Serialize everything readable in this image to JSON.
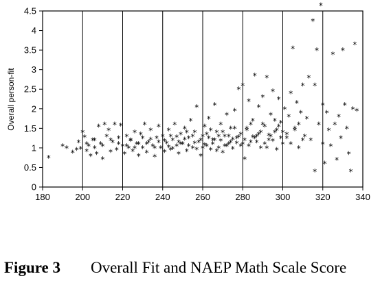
{
  "chart_data": {
    "type": "scatter",
    "marker": "*",
    "ylabel": "Overall person-fit",
    "xlim": [
      180,
      340
    ],
    "ylim": [
      0,
      4.5
    ],
    "xticks": [
      "180",
      "200",
      "220",
      "240",
      "260",
      "280",
      "300",
      "320",
      "340"
    ],
    "yticks": [
      "0",
      "0.5",
      "1",
      "1.5",
      "2",
      "2.5",
      "3",
      "3.5",
      "4",
      "4.5"
    ],
    "grid": "vertical",
    "series": [
      {
        "points": [
          {
            "x": 183,
            "y": 0.75
          },
          {
            "x": 190,
            "y": 1.05
          },
          {
            "x": 192,
            "y": 1.0
          },
          {
            "x": 195,
            "y": 0.88
          },
          {
            "x": 197,
            "y": 0.95
          },
          {
            "x": 198,
            "y": 1.15
          },
          {
            "x": 200,
            "y": 1.4
          },
          {
            "x": 201,
            "y": 1.28
          },
          {
            "x": 202,
            "y": 0.92
          },
          {
            "x": 203,
            "y": 1.05
          },
          {
            "x": 204,
            "y": 0.8
          },
          {
            "x": 205,
            "y": 1.2
          },
          {
            "x": 206,
            "y": 1.0
          },
          {
            "x": 207,
            "y": 0.85
          },
          {
            "x": 208,
            "y": 1.55
          },
          {
            "x": 209,
            "y": 1.1
          },
          {
            "x": 210,
            "y": 0.72
          },
          {
            "x": 211,
            "y": 1.6
          },
          {
            "x": 212,
            "y": 1.3
          },
          {
            "x": 213,
            "y": 1.45
          },
          {
            "x": 214,
            "y": 0.9
          },
          {
            "x": 215,
            "y": 1.15
          },
          {
            "x": 216,
            "y": 1.6
          },
          {
            "x": 217,
            "y": 0.95
          },
          {
            "x": 218,
            "y": 1.25
          },
          {
            "x": 219,
            "y": 1.58
          },
          {
            "x": 220,
            "y": 1.05
          },
          {
            "x": 221,
            "y": 0.85
          },
          {
            "x": 222,
            "y": 1.3
          },
          {
            "x": 223,
            "y": 1.0
          },
          {
            "x": 224,
            "y": 1.2
          },
          {
            "x": 225,
            "y": 0.92
          },
          {
            "x": 226,
            "y": 1.4
          },
          {
            "x": 227,
            "y": 1.1
          },
          {
            "x": 228,
            "y": 0.8
          },
          {
            "x": 229,
            "y": 1.35
          },
          {
            "x": 230,
            "y": 1.0
          },
          {
            "x": 231,
            "y": 1.6
          },
          {
            "x": 232,
            "y": 0.88
          },
          {
            "x": 233,
            "y": 1.15
          },
          {
            "x": 234,
            "y": 1.45
          },
          {
            "x": 235,
            "y": 1.05
          },
          {
            "x": 236,
            "y": 0.78
          },
          {
            "x": 237,
            "y": 1.25
          },
          {
            "x": 238,
            "y": 1.55
          },
          {
            "x": 239,
            "y": 1.0
          },
          {
            "x": 240,
            "y": 1.3
          },
          {
            "x": 241,
            "y": 0.9
          },
          {
            "x": 242,
            "y": 1.12
          },
          {
            "x": 243,
            "y": 1.45
          },
          {
            "x": 244,
            "y": 0.95
          },
          {
            "x": 245,
            "y": 1.2
          },
          {
            "x": 246,
            "y": 1.6
          },
          {
            "x": 247,
            "y": 1.05
          },
          {
            "x": 248,
            "y": 0.85
          },
          {
            "x": 249,
            "y": 1.35
          },
          {
            "x": 250,
            "y": 1.1
          },
          {
            "x": 251,
            "y": 1.5
          },
          {
            "x": 252,
            "y": 0.92
          },
          {
            "x": 253,
            "y": 1.25
          },
          {
            "x": 254,
            "y": 1.7
          },
          {
            "x": 255,
            "y": 1.0
          },
          {
            "x": 256,
            "y": 1.4
          },
          {
            "x": 257,
            "y": 2.05
          },
          {
            "x": 258,
            "y": 1.15
          },
          {
            "x": 259,
            "y": 0.8
          },
          {
            "x": 260,
            "y": 1.3
          },
          {
            "x": 261,
            "y": 1.55
          },
          {
            "x": 262,
            "y": 1.05
          },
          {
            "x": 263,
            "y": 1.75
          },
          {
            "x": 264,
            "y": 0.95
          },
          {
            "x": 265,
            "y": 1.2
          },
          {
            "x": 266,
            "y": 2.1
          },
          {
            "x": 267,
            "y": 1.4
          },
          {
            "x": 268,
            "y": 1.0
          },
          {
            "x": 269,
            "y": 1.6
          },
          {
            "x": 270,
            "y": 0.88
          },
          {
            "x": 271,
            "y": 1.3
          },
          {
            "x": 272,
            "y": 1.85
          },
          {
            "x": 273,
            "y": 1.1
          },
          {
            "x": 274,
            "y": 1.5
          },
          {
            "x": 275,
            "y": 0.98
          },
          {
            "x": 276,
            "y": 1.95
          },
          {
            "x": 277,
            "y": 1.25
          },
          {
            "x": 278,
            "y": 2.5
          },
          {
            "x": 279,
            "y": 1.05
          },
          {
            "x": 280,
            "y": 2.6
          },
          {
            "x": 281,
            "y": 0.72
          },
          {
            "x": 282,
            "y": 1.45
          },
          {
            "x": 283,
            "y": 2.2
          },
          {
            "x": 284,
            "y": 1.15
          },
          {
            "x": 285,
            "y": 1.7
          },
          {
            "x": 286,
            "y": 2.85
          },
          {
            "x": 287,
            "y": 1.3
          },
          {
            "x": 288,
            "y": 2.05
          },
          {
            "x": 289,
            "y": 1.0
          },
          {
            "x": 290,
            "y": 2.3
          },
          {
            "x": 291,
            "y": 1.55
          },
          {
            "x": 292,
            "y": 2.8
          },
          {
            "x": 293,
            "y": 1.2
          },
          {
            "x": 294,
            "y": 1.85
          },
          {
            "x": 295,
            "y": 2.45
          },
          {
            "x": 296,
            "y": 1.4
          },
          {
            "x": 297,
            "y": 0.95
          },
          {
            "x": 298,
            "y": 2.25
          },
          {
            "x": 299,
            "y": 1.65
          },
          {
            "x": 300,
            "y": 1.1
          },
          {
            "x": 301,
            "y": 2.0
          },
          {
            "x": 302,
            "y": 1.35
          },
          {
            "x": 303,
            "y": 1.8
          },
          {
            "x": 304,
            "y": 2.4
          },
          {
            "x": 305,
            "y": 3.55
          },
          {
            "x": 306,
            "y": 1.5
          },
          {
            "x": 307,
            "y": 2.15
          },
          {
            "x": 308,
            "y": 1.0
          },
          {
            "x": 309,
            "y": 1.9
          },
          {
            "x": 310,
            "y": 2.6
          },
          {
            "x": 311,
            "y": 1.3
          },
          {
            "x": 312,
            "y": 1.75
          },
          {
            "x": 313,
            "y": 2.8
          },
          {
            "x": 314,
            "y": 1.2
          },
          {
            "x": 315,
            "y": 4.25
          },
          {
            "x": 316,
            "y": 0.4
          },
          {
            "x": 316,
            "y": 2.6
          },
          {
            "x": 317,
            "y": 3.5
          },
          {
            "x": 318,
            "y": 1.6
          },
          {
            "x": 319,
            "y": 4.65
          },
          {
            "x": 320,
            "y": 2.1
          },
          {
            "x": 320,
            "y": 1.1
          },
          {
            "x": 321,
            "y": 0.6
          },
          {
            "x": 322,
            "y": 1.9
          },
          {
            "x": 323,
            "y": 1.45
          },
          {
            "x": 324,
            "y": 1.05
          },
          {
            "x": 325,
            "y": 3.4
          },
          {
            "x": 326,
            "y": 1.6
          },
          {
            "x": 327,
            "y": 0.7
          },
          {
            "x": 328,
            "y": 1.8
          },
          {
            "x": 329,
            "y": 1.25
          },
          {
            "x": 330,
            "y": 3.5
          },
          {
            "x": 331,
            "y": 2.1
          },
          {
            "x": 332,
            "y": 1.5
          },
          {
            "x": 333,
            "y": 0.85
          },
          {
            "x": 334,
            "y": 0.4
          },
          {
            "x": 335,
            "y": 2.0
          },
          {
            "x": 336,
            "y": 3.65
          },
          {
            "x": 337,
            "y": 1.95
          },
          {
            "x": 241,
            "y": 1.18
          },
          {
            "x": 243,
            "y": 1.02
          },
          {
            "x": 245,
            "y": 0.98
          },
          {
            "x": 247,
            "y": 1.28
          },
          {
            "x": 249,
            "y": 1.1
          },
          {
            "x": 251,
            "y": 1.22
          },
          {
            "x": 253,
            "y": 1.05
          },
          {
            "x": 255,
            "y": 1.3
          },
          {
            "x": 257,
            "y": 0.96
          },
          {
            "x": 259,
            "y": 1.2
          },
          {
            "x": 261,
            "y": 1.08
          },
          {
            "x": 263,
            "y": 1.25
          },
          {
            "x": 265,
            "y": 1.1
          },
          {
            "x": 267,
            "y": 0.92
          },
          {
            "x": 269,
            "y": 1.18
          },
          {
            "x": 271,
            "y": 1.05
          },
          {
            "x": 273,
            "y": 1.3
          },
          {
            "x": 275,
            "y": 1.22
          },
          {
            "x": 277,
            "y": 1.12
          },
          {
            "x": 279,
            "y": 1.35
          },
          {
            "x": 281,
            "y": 1.2
          },
          {
            "x": 283,
            "y": 1.05
          },
          {
            "x": 285,
            "y": 1.28
          },
          {
            "x": 287,
            "y": 1.15
          },
          {
            "x": 289,
            "y": 1.4
          },
          {
            "x": 291,
            "y": 1.1
          },
          {
            "x": 293,
            "y": 1.32
          },
          {
            "x": 295,
            "y": 1.18
          },
          {
            "x": 297,
            "y": 1.45
          },
          {
            "x": 299,
            "y": 1.25
          },
          {
            "x": 232,
            "y": 1.1
          },
          {
            "x": 234,
            "y": 1.22
          },
          {
            "x": 236,
            "y": 1.0
          },
          {
            "x": 238,
            "y": 1.15
          },
          {
            "x": 230,
            "y": 1.25
          },
          {
            "x": 228,
            "y": 1.1
          },
          {
            "x": 226,
            "y": 1.0
          },
          {
            "x": 224,
            "y": 1.18
          },
          {
            "x": 222,
            "y": 1.05
          },
          {
            "x": 218,
            "y": 1.1
          },
          {
            "x": 214,
            "y": 1.2
          },
          {
            "x": 210,
            "y": 1.05
          },
          {
            "x": 206,
            "y": 1.2
          },
          {
            "x": 202,
            "y": 1.1
          },
          {
            "x": 199,
            "y": 0.98
          },
          {
            "x": 262,
            "y": 1.35
          },
          {
            "x": 266,
            "y": 1.2
          },
          {
            "x": 270,
            "y": 1.4
          },
          {
            "x": 274,
            "y": 1.15
          },
          {
            "x": 278,
            "y": 1.28
          },
          {
            "x": 282,
            "y": 1.5
          },
          {
            "x": 286,
            "y": 1.25
          },
          {
            "x": 290,
            "y": 1.6
          },
          {
            "x": 294,
            "y": 1.3
          },
          {
            "x": 298,
            "y": 1.55
          },
          {
            "x": 302,
            "y": 1.25
          },
          {
            "x": 306,
            "y": 1.45
          },
          {
            "x": 310,
            "y": 1.2
          },
          {
            "x": 244,
            "y": 1.3
          },
          {
            "x": 248,
            "y": 1.15
          },
          {
            "x": 252,
            "y": 1.4
          },
          {
            "x": 256,
            "y": 1.12
          },
          {
            "x": 260,
            "y": 1.0
          },
          {
            "x": 264,
            "y": 1.45
          },
          {
            "x": 268,
            "y": 1.3
          },
          {
            "x": 272,
            "y": 1.05
          },
          {
            "x": 276,
            "y": 1.5
          },
          {
            "x": 280,
            "y": 1.1
          },
          {
            "x": 284,
            "y": 1.6
          },
          {
            "x": 288,
            "y": 1.35
          },
          {
            "x": 292,
            "y": 1.0
          },
          {
            "x": 296,
            "y": 1.7
          },
          {
            "x": 300,
            "y": 1.4
          },
          {
            "x": 304,
            "y": 1.1
          },
          {
            "x": 308,
            "y": 1.6
          }
        ]
      }
    ]
  },
  "caption": {
    "number": "Figure 3",
    "text": "Overall Fit and NAEP Math Scale Score"
  }
}
